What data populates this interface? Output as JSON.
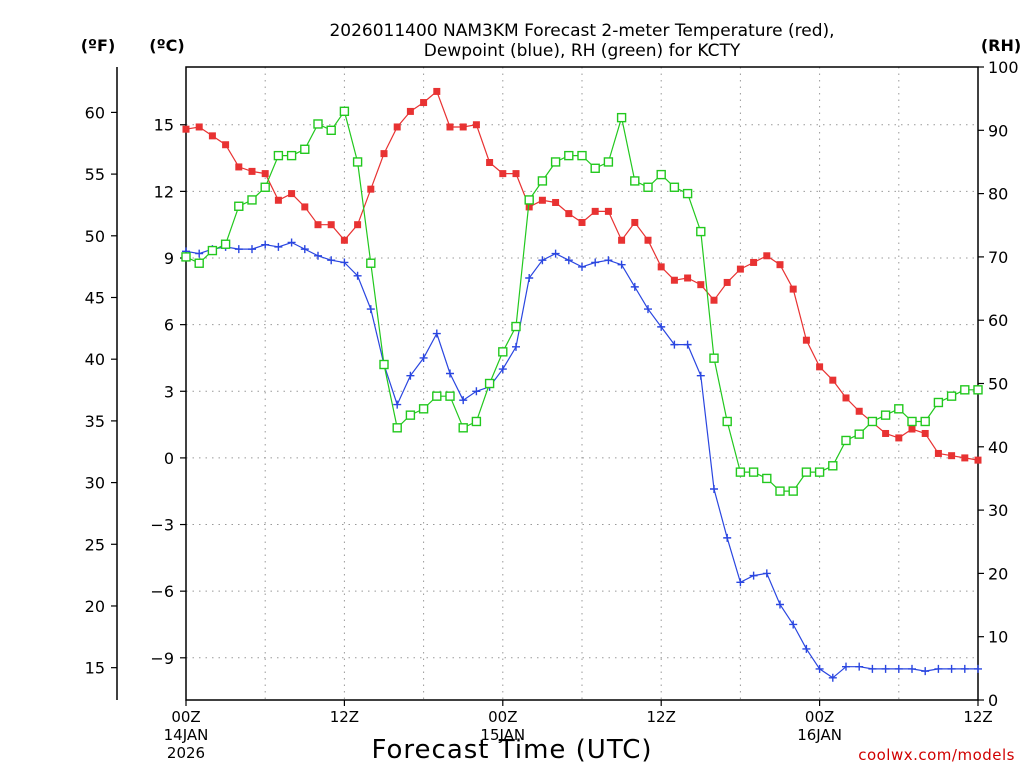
{
  "chart_data": {
    "type": "line",
    "title_line1": "2026011400 NAM3KM Forecast 2-meter Temperature (red),",
    "title_line2": "Dewpoint (blue), RH (green) for KCTY",
    "unit_f": "(ºF)",
    "unit_c": "(ºC)",
    "unit_rh": "(RH)",
    "xlabel": "Forecast Time (UTC)",
    "credit": "coolwx.com/models",
    "x_ticks": [
      {
        "hour": 0,
        "label": "00Z",
        "sub1": "14JAN",
        "sub2": "2026"
      },
      {
        "hour": 12,
        "label": "12Z",
        "sub1": "",
        "sub2": ""
      },
      {
        "hour": 24,
        "label": "00Z",
        "sub1": "15JAN",
        "sub2": ""
      },
      {
        "hour": 36,
        "label": "12Z",
        "sub1": "",
        "sub2": ""
      },
      {
        "hour": 48,
        "label": "00Z",
        "sub1": "16JAN",
        "sub2": ""
      },
      {
        "hour": 60,
        "label": "12Z",
        "sub1": "",
        "sub2": ""
      }
    ],
    "xlim": [
      0,
      60
    ],
    "ylim_c": [
      -10.9,
      17.6
    ],
    "ylim_rh": [
      0,
      100
    ],
    "ticks_c": [
      -9,
      -6,
      -3,
      0,
      3,
      6,
      9,
      12,
      15
    ],
    "ticks_f": [
      15,
      20,
      25,
      30,
      35,
      40,
      45,
      50,
      55,
      60
    ],
    "ticks_rh": [
      0,
      10,
      20,
      30,
      40,
      50,
      60,
      70,
      80,
      90,
      100
    ],
    "hours": [
      0,
      1,
      2,
      3,
      4,
      5,
      6,
      7,
      8,
      9,
      10,
      11,
      12,
      13,
      14,
      15,
      16,
      17,
      18,
      19,
      20,
      21,
      22,
      23,
      24,
      25,
      26,
      27,
      28,
      29,
      30,
      31,
      32,
      33,
      34,
      35,
      36,
      37,
      38,
      39,
      40,
      41,
      42,
      43,
      44,
      45,
      46,
      47,
      48,
      49,
      50,
      51,
      52,
      53,
      54,
      55,
      56,
      57,
      58,
      59,
      60
    ],
    "series": [
      {
        "name": "Temperature",
        "axis": "c",
        "color": "#e83232",
        "marker": "filled-square",
        "values": [
          14.8,
          14.9,
          14.5,
          14.1,
          13.1,
          12.9,
          12.8,
          11.6,
          11.9,
          11.3,
          10.5,
          10.5,
          9.8,
          10.5,
          12.1,
          13.7,
          14.9,
          15.6,
          16.0,
          16.5,
          14.9,
          14.9,
          15.0,
          13.3,
          12.8,
          12.8,
          11.3,
          11.6,
          11.5,
          11.0,
          10.6,
          11.1,
          11.1,
          9.8,
          10.6,
          9.8,
          8.6,
          8.0,
          8.1,
          7.8,
          7.1,
          7.9,
          8.5,
          8.8,
          9.1,
          8.7,
          7.6,
          5.3,
          4.1,
          3.5,
          2.7,
          2.1,
          1.6,
          1.1,
          0.9,
          1.3,
          1.1,
          0.2,
          0.1,
          0.0,
          -0.1
        ]
      },
      {
        "name": "Dewpoint",
        "axis": "c",
        "color": "#2a46e0",
        "marker": "plus",
        "values": [
          9.3,
          9.2,
          9.4,
          9.5,
          9.4,
          9.4,
          9.6,
          9.5,
          9.7,
          9.4,
          9.1,
          8.9,
          8.8,
          8.2,
          6.7,
          4.2,
          2.4,
          3.7,
          4.5,
          5.6,
          3.8,
          2.6,
          3.0,
          3.2,
          4.0,
          5.0,
          8.1,
          8.9,
          9.2,
          8.9,
          8.6,
          8.8,
          8.9,
          8.7,
          7.7,
          6.7,
          5.9,
          5.1,
          5.1,
          3.7,
          -1.4,
          -3.6,
          -5.6,
          -5.3,
          -5.2,
          -6.6,
          -7.5,
          -8.6,
          -9.5,
          -9.9,
          -9.4,
          -9.4,
          -9.5,
          -9.5,
          -9.5,
          -9.5,
          -9.6,
          -9.5,
          -9.5,
          -9.5,
          -9.5
        ]
      },
      {
        "name": "RH",
        "axis": "rh",
        "color": "#22c81e",
        "marker": "open-square",
        "values": [
          70,
          69,
          71,
          72,
          78,
          79,
          81,
          86,
          86,
          87,
          91,
          90,
          93,
          85,
          69,
          53,
          43,
          45,
          46,
          48,
          48,
          43,
          44,
          50,
          55,
          59,
          79,
          82,
          85,
          86,
          86,
          84,
          85,
          92,
          82,
          81,
          83,
          81,
          80,
          74,
          54,
          44,
          36,
          36,
          35,
          33,
          33,
          36,
          36,
          37,
          41,
          42,
          44,
          45,
          46,
          44,
          44,
          47,
          48,
          49,
          49
        ]
      }
    ]
  }
}
